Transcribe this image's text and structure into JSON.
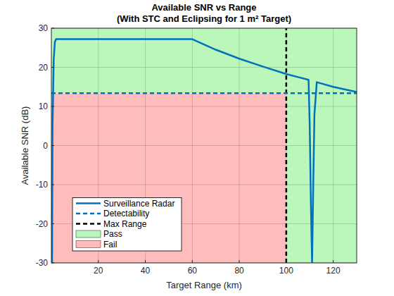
{
  "chart_data": {
    "type": "line",
    "title": [
      "Available SNR vs Range",
      "(With STC and Eclipsing for 1 m² Target)"
    ],
    "x_label": "Target Range (km)",
    "y_label": "Available SNR (dB)",
    "xlim": [
      0,
      130
    ],
    "ylim": [
      -30,
      30
    ],
    "xticks": [
      20,
      40,
      60,
      80,
      100,
      120
    ],
    "yticks": [
      -30,
      -20,
      -10,
      0,
      10,
      20,
      30
    ],
    "grid": true,
    "legend": "lower left",
    "series": [
      {
        "name": "Surveillance Radar",
        "type": "line",
        "color": "#0072bd",
        "line_style": "solid",
        "x": [
          0.3,
          0.5,
          1,
          1.5,
          2,
          60,
          70,
          80,
          90,
          100,
          105,
          109.5,
          110,
          110.5,
          111,
          111.5,
          112,
          113,
          120,
          130
        ],
        "values": [
          -30,
          5,
          22,
          26.5,
          27.2,
          27.2,
          24.5,
          22.2,
          20.2,
          18.3,
          17.5,
          16.8,
          5,
          -15,
          -30,
          -10,
          8,
          16.2,
          15,
          13.7
        ]
      },
      {
        "name": "Detectability",
        "type": "line",
        "color": "#0072bd",
        "line_style": "dashed",
        "x": [
          0,
          130
        ],
        "values": [
          13.4,
          13.4
        ]
      },
      {
        "name": "Max Range",
        "type": "line",
        "color": "#000000",
        "line_style": "dashed",
        "x": [
          100,
          100
        ],
        "values": [
          -30,
          30
        ]
      },
      {
        "name": "Pass",
        "type": "area",
        "color": "#bbf7bb",
        "x": [
          0,
          100,
          100,
          130,
          130,
          0
        ],
        "values": [
          13.4,
          13.4,
          -30,
          -30,
          30,
          30
        ]
      },
      {
        "name": "Fail",
        "type": "area",
        "color": "#ffbcbc",
        "x": [
          0,
          100,
          100,
          0
        ],
        "values": [
          -30,
          -30,
          13.4,
          13.4
        ]
      }
    ]
  }
}
